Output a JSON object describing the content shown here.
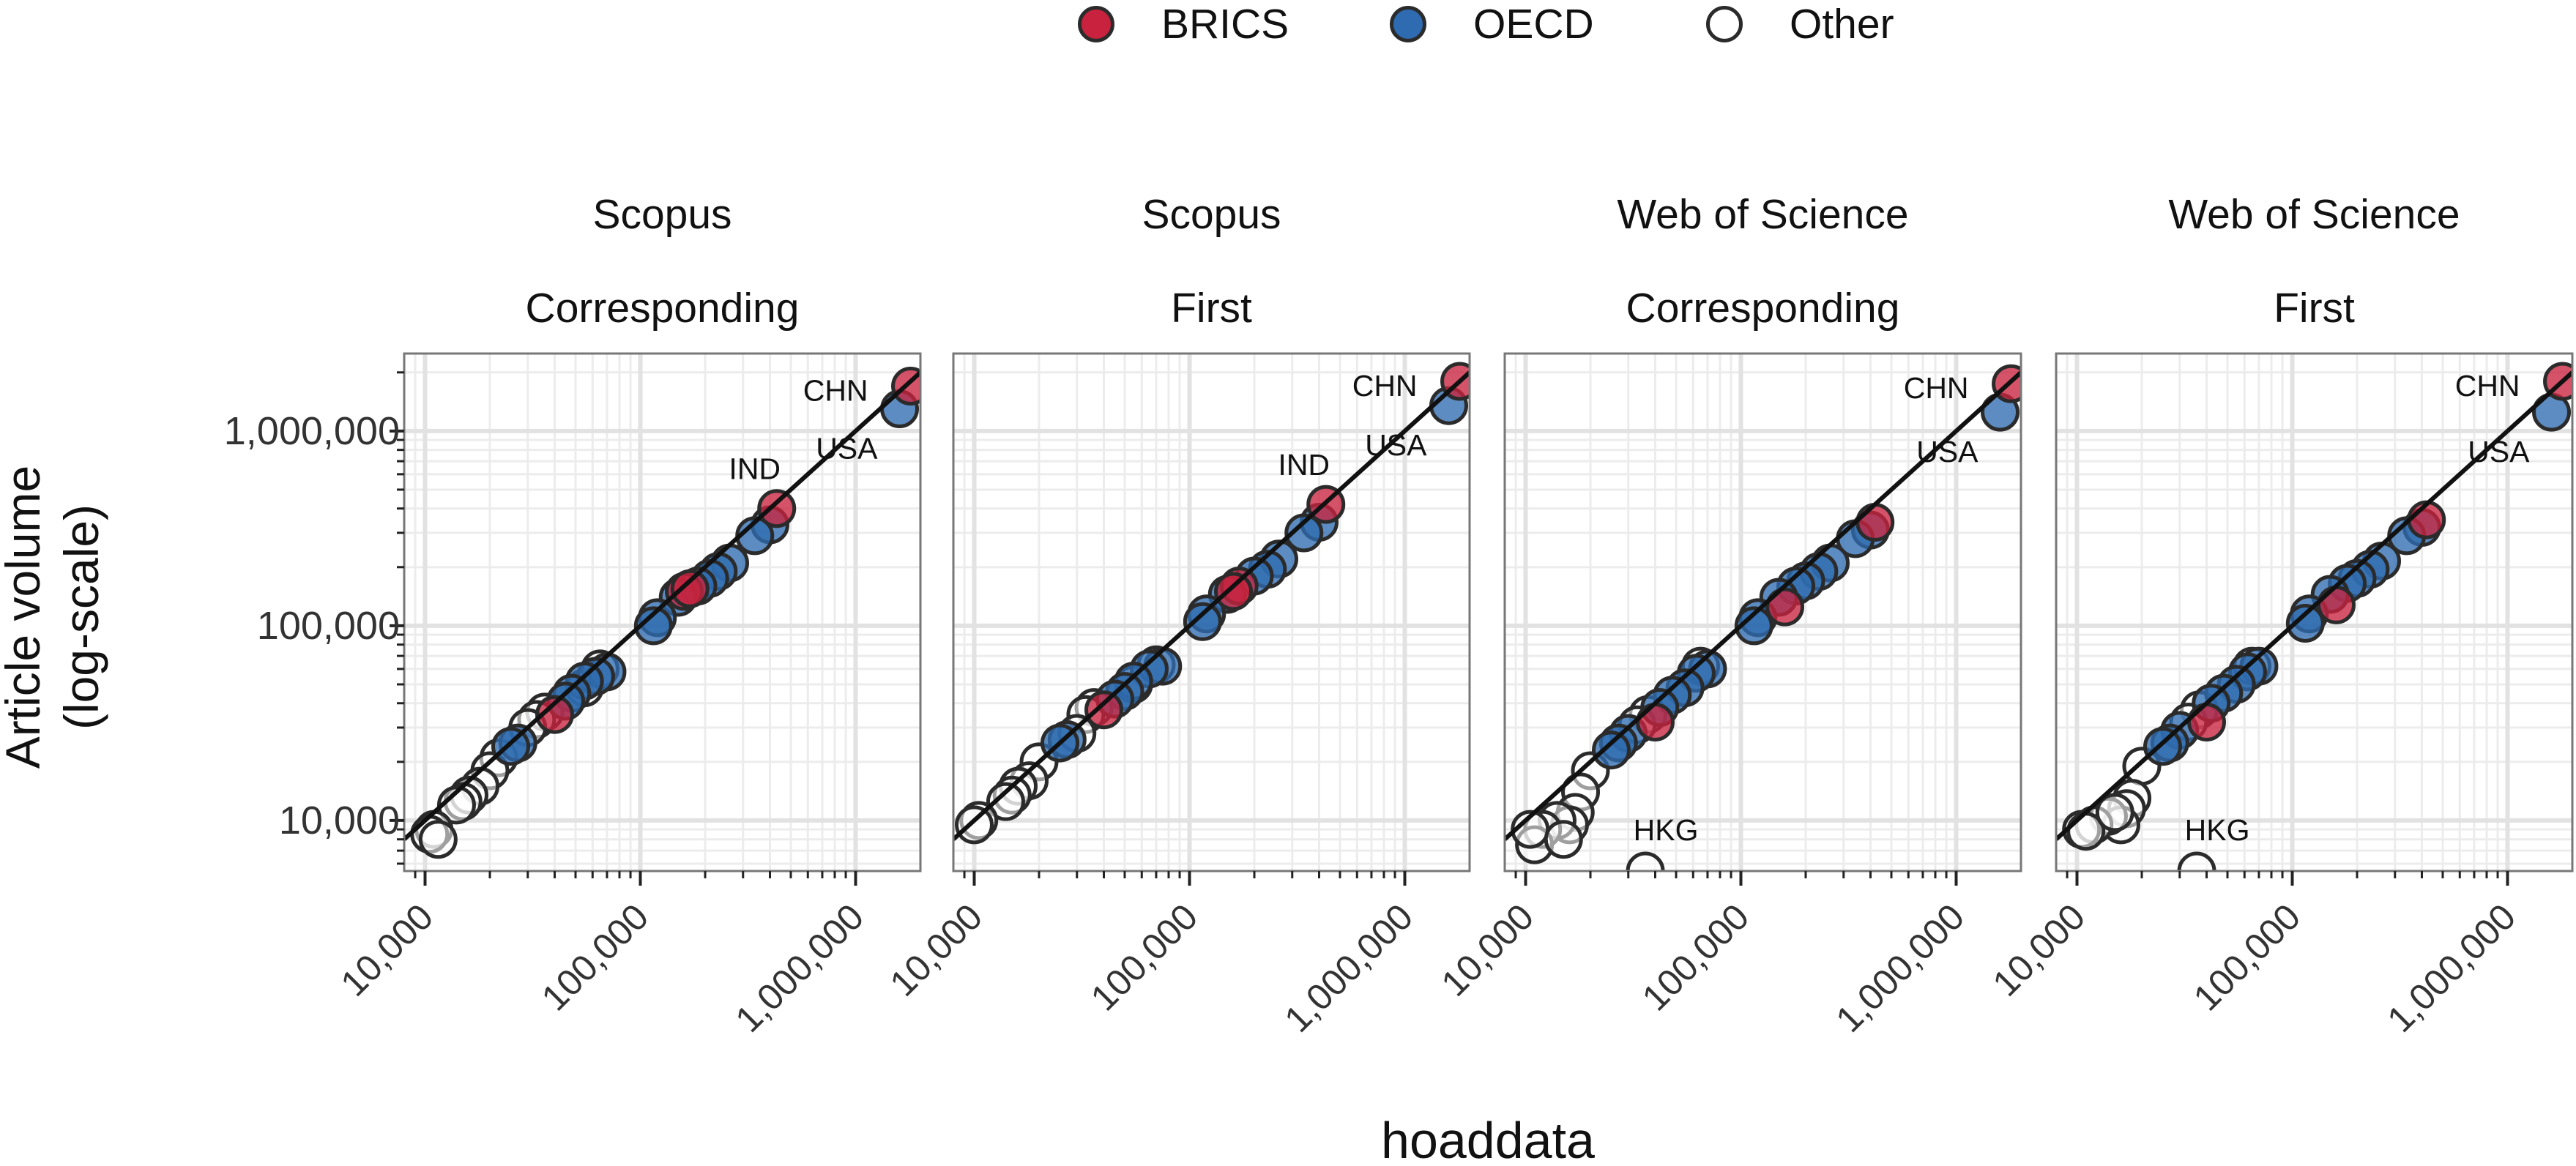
{
  "chart_data": {
    "type": "scatter",
    "x_label": "hoaddata",
    "y_label_lines": [
      "Article volume",
      "(log-scale)"
    ],
    "x_scale": "log",
    "y_scale": "log",
    "xlim": [
      8000,
      2000000
    ],
    "ylim": [
      5500,
      2500000
    ],
    "x_ticks": [
      10000,
      100000,
      1000000
    ],
    "x_tick_labels": [
      "10,000",
      "100,000",
      "1,000,000"
    ],
    "y_ticks": [
      10000,
      100000,
      1000000
    ],
    "y_tick_labels": [
      "10,000",
      "100,000",
      "1,000,000"
    ],
    "grid": true,
    "reference_line": "y = x",
    "legend": {
      "position": "top-center",
      "entries": [
        {
          "group": "BRICS",
          "label": "BRICS",
          "color": "#c8223e"
        },
        {
          "group": "OECD",
          "label": "OECD",
          "color": "#2e6bb0"
        },
        {
          "group": "Other",
          "label": "Other",
          "color": "#ffffff"
        }
      ]
    },
    "panels": [
      {
        "title_lines": [
          "Scopus",
          "Corresponding"
        ],
        "points": [
          {
            "x": 1800000,
            "y": 1700000,
            "g": "BRICS",
            "label": "CHN"
          },
          {
            "x": 1600000,
            "y": 1300000,
            "g": "OECD",
            "label": "USA"
          },
          {
            "x": 430000,
            "y": 400000,
            "g": "BRICS",
            "label": "IND"
          },
          {
            "x": 400000,
            "y": 330000,
            "g": "OECD"
          },
          {
            "x": 340000,
            "y": 290000,
            "g": "OECD"
          },
          {
            "x": 260000,
            "y": 210000,
            "g": "OECD"
          },
          {
            "x": 230000,
            "y": 190000,
            "g": "OECD"
          },
          {
            "x": 210000,
            "y": 175000,
            "g": "OECD"
          },
          {
            "x": 185000,
            "y": 160000,
            "g": "OECD"
          },
          {
            "x": 160000,
            "y": 150000,
            "g": "BRICS"
          },
          {
            "x": 170000,
            "y": 155000,
            "g": "BRICS"
          },
          {
            "x": 150000,
            "y": 140000,
            "g": "OECD"
          },
          {
            "x": 120000,
            "y": 110000,
            "g": "OECD"
          },
          {
            "x": 115000,
            "y": 100000,
            "g": "OECD"
          },
          {
            "x": 70000,
            "y": 58000,
            "g": "OECD"
          },
          {
            "x": 62000,
            "y": 55000,
            "g": "OECD"
          },
          {
            "x": 55000,
            "y": 52000,
            "g": "OECD"
          },
          {
            "x": 48000,
            "y": 45000,
            "g": "OECD"
          },
          {
            "x": 45000,
            "y": 41000,
            "g": "OECD"
          },
          {
            "x": 40000,
            "y": 35000,
            "g": "BRICS"
          },
          {
            "x": 36000,
            "y": 36000,
            "g": "Other"
          },
          {
            "x": 33000,
            "y": 33000,
            "g": "Other"
          },
          {
            "x": 30000,
            "y": 30000,
            "g": "Other"
          },
          {
            "x": 27000,
            "y": 25000,
            "g": "OECD"
          },
          {
            "x": 25000,
            "y": 24000,
            "g": "OECD"
          },
          {
            "x": 22000,
            "y": 21000,
            "g": "Other"
          },
          {
            "x": 20000,
            "y": 18000,
            "g": "Other"
          },
          {
            "x": 18000,
            "y": 15000,
            "g": "Other"
          },
          {
            "x": 16000,
            "y": 13500,
            "g": "Other"
          },
          {
            "x": 15000,
            "y": 12500,
            "g": "Other"
          },
          {
            "x": 14000,
            "y": 12000,
            "g": "Other"
          },
          {
            "x": 11000,
            "y": 9000,
            "g": "Other"
          },
          {
            "x": 10500,
            "y": 8500,
            "g": "Other"
          },
          {
            "x": 11500,
            "y": 8000,
            "g": "Other"
          },
          {
            "x": 55000,
            "y": 48000,
            "g": "Other"
          },
          {
            "x": 65000,
            "y": 60000,
            "g": "Other"
          }
        ]
      },
      {
        "title_lines": [
          "Scopus",
          "First"
        ],
        "points": [
          {
            "x": 1800000,
            "y": 1800000,
            "g": "BRICS",
            "label": "CHN"
          },
          {
            "x": 1600000,
            "y": 1350000,
            "g": "OECD",
            "label": "USA"
          },
          {
            "x": 430000,
            "y": 420000,
            "g": "BRICS",
            "label": "IND"
          },
          {
            "x": 400000,
            "y": 340000,
            "g": "OECD"
          },
          {
            "x": 340000,
            "y": 300000,
            "g": "OECD"
          },
          {
            "x": 260000,
            "y": 220000,
            "g": "OECD"
          },
          {
            "x": 230000,
            "y": 195000,
            "g": "OECD"
          },
          {
            "x": 200000,
            "y": 180000,
            "g": "OECD"
          },
          {
            "x": 170000,
            "y": 160000,
            "g": "BRICS"
          },
          {
            "x": 160000,
            "y": 150000,
            "g": "BRICS"
          },
          {
            "x": 150000,
            "y": 145000,
            "g": "OECD"
          },
          {
            "x": 120000,
            "y": 115000,
            "g": "OECD"
          },
          {
            "x": 115000,
            "y": 105000,
            "g": "OECD"
          },
          {
            "x": 75000,
            "y": 62000,
            "g": "OECD"
          },
          {
            "x": 65000,
            "y": 60000,
            "g": "OECD"
          },
          {
            "x": 55000,
            "y": 52000,
            "g": "OECD"
          },
          {
            "x": 50000,
            "y": 46000,
            "g": "OECD"
          },
          {
            "x": 45000,
            "y": 42000,
            "g": "OECD"
          },
          {
            "x": 40000,
            "y": 37000,
            "g": "BRICS"
          },
          {
            "x": 36000,
            "y": 38000,
            "g": "Other"
          },
          {
            "x": 33000,
            "y": 35000,
            "g": "Other"
          },
          {
            "x": 30000,
            "y": 28000,
            "g": "Other"
          },
          {
            "x": 27000,
            "y": 26000,
            "g": "OECD"
          },
          {
            "x": 25000,
            "y": 25000,
            "g": "OECD"
          },
          {
            "x": 20000,
            "y": 20000,
            "g": "Other"
          },
          {
            "x": 18000,
            "y": 16000,
            "g": "Other"
          },
          {
            "x": 16000,
            "y": 15000,
            "g": "Other"
          },
          {
            "x": 15000,
            "y": 13500,
            "g": "Other"
          },
          {
            "x": 14000,
            "y": 12500,
            "g": "Other"
          },
          {
            "x": 10500,
            "y": 10000,
            "g": "Other"
          },
          {
            "x": 10000,
            "y": 9500,
            "g": "Other"
          },
          {
            "x": 55000,
            "y": 50000,
            "g": "Other"
          },
          {
            "x": 70000,
            "y": 63000,
            "g": "Other"
          }
        ]
      },
      {
        "title_lines": [
          "Web of Science",
          "Corresponding"
        ],
        "points": [
          {
            "x": 1800000,
            "y": 1750000,
            "g": "BRICS",
            "label": "CHN"
          },
          {
            "x": 1600000,
            "y": 1250000,
            "g": "OECD",
            "label": "USA"
          },
          {
            "x": 420000,
            "y": 340000,
            "g": "BRICS"
          },
          {
            "x": 400000,
            "y": 310000,
            "g": "OECD"
          },
          {
            "x": 340000,
            "y": 280000,
            "g": "OECD"
          },
          {
            "x": 260000,
            "y": 210000,
            "g": "OECD"
          },
          {
            "x": 230000,
            "y": 190000,
            "g": "OECD"
          },
          {
            "x": 200000,
            "y": 170000,
            "g": "OECD"
          },
          {
            "x": 180000,
            "y": 160000,
            "g": "OECD"
          },
          {
            "x": 160000,
            "y": 125000,
            "g": "BRICS"
          },
          {
            "x": 150000,
            "y": 140000,
            "g": "OECD"
          },
          {
            "x": 120000,
            "y": 110000,
            "g": "OECD"
          },
          {
            "x": 115000,
            "y": 100000,
            "g": "OECD"
          },
          {
            "x": 70000,
            "y": 60000,
            "g": "OECD"
          },
          {
            "x": 62000,
            "y": 57000,
            "g": "OECD"
          },
          {
            "x": 55000,
            "y": 48000,
            "g": "OECD"
          },
          {
            "x": 48000,
            "y": 44000,
            "g": "OECD"
          },
          {
            "x": 42000,
            "y": 38000,
            "g": "OECD"
          },
          {
            "x": 40000,
            "y": 32000,
            "g": "BRICS"
          },
          {
            "x": 37000,
            "y": 35000,
            "g": "Other"
          },
          {
            "x": 33000,
            "y": 31000,
            "g": "Other"
          },
          {
            "x": 30000,
            "y": 28000,
            "g": "OECD"
          },
          {
            "x": 27000,
            "y": 25000,
            "g": "OECD"
          },
          {
            "x": 25000,
            "y": 23000,
            "g": "OECD"
          },
          {
            "x": 20000,
            "y": 18000,
            "g": "Other"
          },
          {
            "x": 18000,
            "y": 14000,
            "g": "Other"
          },
          {
            "x": 17000,
            "y": 11000,
            "g": "Other"
          },
          {
            "x": 16000,
            "y": 9500,
            "g": "Other"
          },
          {
            "x": 14000,
            "y": 10000,
            "g": "Other"
          },
          {
            "x": 12000,
            "y": 9000,
            "g": "Other"
          },
          {
            "x": 11000,
            "y": 7500,
            "g": "Other"
          },
          {
            "x": 10500,
            "y": 9000,
            "g": "Other"
          },
          {
            "x": 15000,
            "y": 8000,
            "g": "Other"
          },
          {
            "x": 36000,
            "y": 5500,
            "g": "Other",
            "label": "HKG"
          },
          {
            "x": 65000,
            "y": 62000,
            "g": "Other"
          }
        ]
      },
      {
        "title_lines": [
          "Web of Science",
          "First"
        ],
        "points": [
          {
            "x": 1800000,
            "y": 1800000,
            "g": "BRICS",
            "label": "CHN"
          },
          {
            "x": 1600000,
            "y": 1250000,
            "g": "OECD",
            "label": "USA"
          },
          {
            "x": 420000,
            "y": 350000,
            "g": "BRICS"
          },
          {
            "x": 400000,
            "y": 320000,
            "g": "OECD"
          },
          {
            "x": 340000,
            "y": 290000,
            "g": "OECD"
          },
          {
            "x": 260000,
            "y": 215000,
            "g": "OECD"
          },
          {
            "x": 230000,
            "y": 195000,
            "g": "OECD"
          },
          {
            "x": 200000,
            "y": 175000,
            "g": "OECD"
          },
          {
            "x": 180000,
            "y": 165000,
            "g": "OECD"
          },
          {
            "x": 160000,
            "y": 128000,
            "g": "BRICS"
          },
          {
            "x": 150000,
            "y": 145000,
            "g": "OECD"
          },
          {
            "x": 120000,
            "y": 115000,
            "g": "OECD"
          },
          {
            "x": 115000,
            "y": 103000,
            "g": "OECD"
          },
          {
            "x": 70000,
            "y": 62000,
            "g": "OECD"
          },
          {
            "x": 62000,
            "y": 58000,
            "g": "OECD"
          },
          {
            "x": 55000,
            "y": 50000,
            "g": "OECD"
          },
          {
            "x": 48000,
            "y": 45000,
            "g": "OECD"
          },
          {
            "x": 42000,
            "y": 40000,
            "g": "OECD"
          },
          {
            "x": 40000,
            "y": 32000,
            "g": "BRICS"
          },
          {
            "x": 37000,
            "y": 37000,
            "g": "Other"
          },
          {
            "x": 33000,
            "y": 32000,
            "g": "Other"
          },
          {
            "x": 30000,
            "y": 29000,
            "g": "OECD"
          },
          {
            "x": 27000,
            "y": 25000,
            "g": "OECD"
          },
          {
            "x": 25000,
            "y": 24000,
            "g": "OECD"
          },
          {
            "x": 20000,
            "y": 19000,
            "g": "Other"
          },
          {
            "x": 18000,
            "y": 13000,
            "g": "Other"
          },
          {
            "x": 17000,
            "y": 11500,
            "g": "Other"
          },
          {
            "x": 16000,
            "y": 9500,
            "g": "Other"
          },
          {
            "x": 14000,
            "y": 10500,
            "g": "Other"
          },
          {
            "x": 12000,
            "y": 9500,
            "g": "Other"
          },
          {
            "x": 10500,
            "y": 9000,
            "g": "Other"
          },
          {
            "x": 11000,
            "y": 8800,
            "g": "Other"
          },
          {
            "x": 15000,
            "y": 11000,
            "g": "Other"
          },
          {
            "x": 36000,
            "y": 5500,
            "g": "Other",
            "label": "HKG"
          },
          {
            "x": 65000,
            "y": 62000,
            "g": "Other"
          }
        ]
      }
    ]
  }
}
